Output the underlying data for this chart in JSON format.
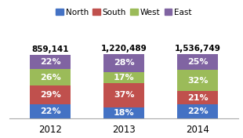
{
  "years": [
    "2012",
    "2013",
    "2014"
  ],
  "totals": [
    "859,141",
    "1,220,489",
    "1,536,749"
  ],
  "series": {
    "North": [
      22,
      18,
      22
    ],
    "South": [
      29,
      37,
      21
    ],
    "West": [
      26,
      17,
      32
    ],
    "East": [
      22,
      28,
      25
    ]
  },
  "colors": {
    "North": "#4472C4",
    "South": "#C0504D",
    "West": "#9BBB59",
    "East": "#8064A2"
  },
  "legend_order": [
    "North",
    "South",
    "West",
    "East"
  ],
  "bar_width": 0.55,
  "text_color_inside": "#FFFFFF",
  "text_color_total": "#000000",
  "xlabel_fontsize": 8.5,
  "legend_fontsize": 7.5,
  "bar_text_fontsize": 8,
  "total_text_fontsize": 7.5,
  "bg_color": "#FFFFFF",
  "ylim_max": 145
}
